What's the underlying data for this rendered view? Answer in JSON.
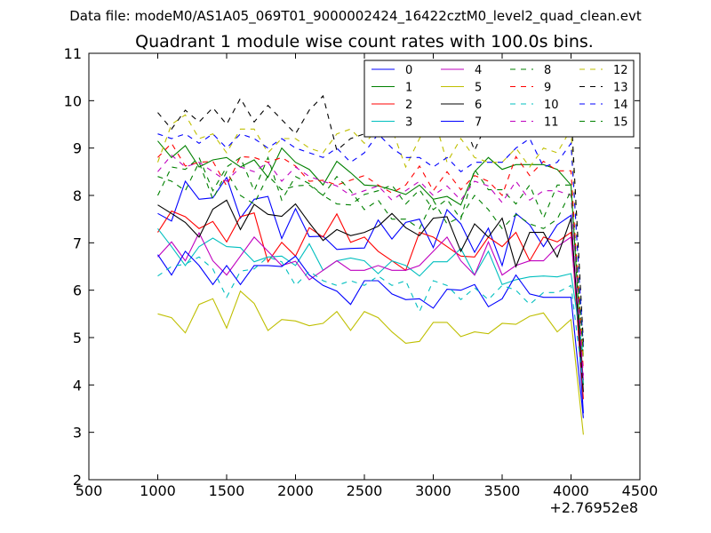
{
  "suptitle": "Data file: modeM0/AS1A05_069T01_9000002424_16422cztM0_level2_quad_clean.evt",
  "chart_data": {
    "type": "line",
    "title": "Quadrant 1 module wise count rates with 100.0s bins.",
    "xlabel": "",
    "ylabel": "",
    "x_offset_label": "+2.76952e8",
    "xlim": [
      500,
      4500
    ],
    "ylim": [
      2,
      11
    ],
    "xticks": [
      "500",
      "1000",
      "1500",
      "2000",
      "2500",
      "3000",
      "3500",
      "4000",
      "4500"
    ],
    "yticks": [
      "2",
      "3",
      "4",
      "5",
      "6",
      "7",
      "8",
      "9",
      "10",
      "11"
    ],
    "grid": false,
    "legend_position": "top-right",
    "x": [
      1000,
      1100,
      1200,
      1300,
      1400,
      1500,
      1600,
      1700,
      1800,
      1900,
      2000,
      2100,
      2200,
      2300,
      2400,
      2500,
      2600,
      2700,
      2800,
      2900,
      3000,
      3100,
      3200,
      3300,
      3400,
      3500,
      3600,
      3700,
      3800,
      3900,
      4000,
      4090
    ],
    "series": [
      {
        "name": "0",
        "color": "#0000ff",
        "dash": "solid",
        "values": [
          7.62,
          7.46,
          8.3,
          7.92,
          7.95,
          8.38,
          7.52,
          7.92,
          7.98,
          7.09,
          7.72,
          7.13,
          7.14,
          6.86,
          6.88,
          6.89,
          7.48,
          7.08,
          7.43,
          7.5,
          6.9,
          7.7,
          7.4,
          6.8,
          7.31,
          6.52,
          7.62,
          7.38,
          6.92,
          7.38,
          7.58,
          3.4
        ]
      },
      {
        "name": "1",
        "color": "#008000",
        "dash": "solid",
        "values": [
          9.15,
          8.8,
          9.05,
          8.6,
          8.75,
          8.8,
          8.6,
          8.75,
          8.38,
          9.0,
          8.7,
          8.55,
          8.22,
          8.72,
          8.48,
          8.22,
          8.2,
          8.12,
          8.02,
          8.22,
          7.92,
          7.98,
          7.8,
          8.5,
          8.8,
          8.55,
          8.65,
          8.65,
          8.65,
          8.55,
          8.22,
          4.0
        ]
      },
      {
        "name": "2",
        "color": "#ff0000",
        "dash": "solid",
        "values": [
          7.22,
          7.67,
          7.55,
          7.3,
          7.45,
          7.02,
          7.55,
          7.63,
          6.6,
          7.01,
          6.72,
          7.32,
          7.12,
          7.61,
          7.01,
          7.12,
          6.82,
          6.62,
          6.42,
          7.22,
          7.12,
          6.92,
          6.72,
          6.7,
          7.12,
          6.92,
          7.22,
          6.62,
          7.12,
          7.02,
          7.22,
          3.7
        ]
      },
      {
        "name": "3",
        "color": "#00bfbf",
        "dash": "solid",
        "values": [
          7.3,
          6.92,
          6.52,
          6.92,
          7.1,
          6.92,
          6.9,
          6.6,
          6.7,
          6.72,
          6.52,
          6.98,
          6.42,
          6.62,
          6.68,
          6.62,
          6.35,
          6.62,
          6.52,
          6.3,
          6.6,
          6.6,
          6.88,
          6.32,
          6.82,
          6.12,
          6.22,
          6.28,
          6.3,
          6.28,
          6.35,
          4.6
        ]
      },
      {
        "name": "4",
        "color": "#bf00bf",
        "dash": "solid",
        "values": [
          6.7,
          7.02,
          6.62,
          7.21,
          6.62,
          6.32,
          6.72,
          7.12,
          6.82,
          6.52,
          6.61,
          6.22,
          6.42,
          6.62,
          6.42,
          6.42,
          6.52,
          6.42,
          6.42,
          6.52,
          6.82,
          7.12,
          6.62,
          6.32,
          7.02,
          6.32,
          6.52,
          6.62,
          6.62,
          6.92,
          7.12,
          4.1
        ]
      },
      {
        "name": "5",
        "color": "#bfbf00",
        "dash": "solid",
        "values": [
          5.5,
          5.42,
          5.1,
          5.7,
          5.82,
          5.2,
          5.98,
          5.72,
          5.15,
          5.38,
          5.35,
          5.25,
          5.3,
          5.55,
          5.15,
          5.55,
          5.42,
          5.12,
          4.88,
          4.92,
          5.32,
          5.32,
          5.02,
          5.12,
          5.08,
          5.3,
          5.28,
          5.45,
          5.52,
          5.12,
          5.38,
          2.95
        ]
      },
      {
        "name": "6",
        "color": "#000000",
        "dash": "solid",
        "values": [
          7.8,
          7.62,
          7.43,
          7.12,
          7.71,
          7.9,
          7.28,
          7.81,
          7.6,
          7.56,
          7.82,
          7.42,
          7.05,
          7.28,
          7.15,
          7.22,
          7.35,
          7.62,
          7.32,
          7.15,
          7.52,
          7.55,
          6.82,
          7.4,
          7.12,
          7.52,
          6.5,
          7.22,
          7.22,
          6.7,
          7.52,
          3.85
        ]
      },
      {
        "name": "7",
        "color": "#0000ff",
        "dash": "solid",
        "values": [
          6.75,
          6.32,
          6.82,
          6.52,
          6.12,
          6.52,
          6.12,
          6.52,
          6.52,
          6.5,
          6.72,
          6.32,
          6.1,
          5.98,
          5.7,
          6.2,
          6.2,
          5.92,
          5.8,
          5.82,
          5.62,
          6.02,
          6.0,
          6.12,
          5.65,
          5.82,
          6.32,
          5.92,
          5.85,
          5.85,
          5.85,
          3.3
        ]
      },
      {
        "name": "8",
        "color": "#008000",
        "dash": "dashed",
        "values": [
          8.4,
          8.3,
          8.1,
          8.7,
          7.92,
          8.5,
          8.0,
          7.82,
          8.42,
          8.12,
          8.2,
          8.22,
          8.0,
          7.82,
          7.8,
          8.02,
          8.1,
          8.22,
          7.82,
          8.12,
          7.7,
          7.92,
          7.5,
          8.55,
          8.12,
          8.12,
          7.82,
          8.22,
          7.52,
          8.22,
          8.22,
          4.6
        ]
      },
      {
        "name": "9",
        "color": "#ff0000",
        "dash": "dashed",
        "values": [
          8.8,
          9.1,
          8.62,
          8.7,
          8.72,
          8.2,
          8.82,
          8.8,
          8.7,
          8.8,
          8.62,
          8.3,
          8.32,
          8.22,
          8.32,
          8.42,
          8.22,
          8.05,
          8.22,
          8.62,
          8.1,
          8.5,
          8.12,
          8.42,
          8.3,
          8.0,
          8.82,
          8.42,
          8.72,
          8.52,
          8.52,
          4.3
        ]
      },
      {
        "name": "10",
        "color": "#00bfbf",
        "dash": "dashed",
        "values": [
          6.3,
          6.5,
          6.55,
          6.7,
          6.45,
          5.85,
          6.4,
          6.45,
          6.7,
          6.6,
          6.1,
          6.4,
          6.2,
          6.1,
          6.2,
          6.1,
          6.3,
          6.1,
          6.2,
          5.55,
          6.2,
          6.1,
          5.8,
          6.05,
          5.8,
          6.1,
          6.0,
          5.7,
          5.95,
          5.95,
          6.1,
          4.0
        ]
      },
      {
        "name": "11",
        "color": "#bf00bf",
        "dash": "dashed",
        "values": [
          8.5,
          8.85,
          8.6,
          8.7,
          8.5,
          8.3,
          8.6,
          8.5,
          8.7,
          8.3,
          8.6,
          8.4,
          8.3,
          8.2,
          8.0,
          8.1,
          8.2,
          7.9,
          8.1,
          8.3,
          8.0,
          8.2,
          7.9,
          8.3,
          8.2,
          7.85,
          8.3,
          7.9,
          8.1,
          8.1,
          8.0,
          4.2
        ]
      },
      {
        "name": "12",
        "color": "#bfbf00",
        "dash": "dashed",
        "values": [
          8.7,
          9.5,
          9.7,
          9.2,
          9.3,
          8.9,
          9.4,
          9.4,
          8.9,
          9.2,
          9.2,
          9.0,
          8.9,
          9.3,
          9.4,
          9.1,
          9.4,
          9.4,
          8.6,
          9.2,
          9.7,
          8.7,
          9.2,
          8.8,
          8.7,
          8.7,
          9.0,
          8.6,
          9.0,
          8.9,
          9.4,
          4.5
        ]
      },
      {
        "name": "13",
        "color": "#000000",
        "dash": "dashed",
        "values": [
          9.75,
          9.4,
          9.8,
          9.55,
          9.85,
          9.5,
          10.05,
          9.55,
          9.9,
          9.6,
          9.3,
          9.8,
          10.1,
          8.95,
          9.2,
          9.3,
          9.5,
          10.08,
          9.4,
          9.8,
          9.5,
          9.7,
          9.7,
          8.95,
          9.6,
          9.3,
          9.4,
          9.5,
          9.7,
          9.5,
          9.8,
          4.9
        ]
      },
      {
        "name": "14",
        "color": "#0000ff",
        "dash": "dashed",
        "values": [
          9.3,
          9.2,
          9.3,
          9.1,
          9.3,
          9.0,
          9.3,
          9.2,
          9.0,
          9.2,
          9.0,
          8.9,
          8.8,
          9.0,
          8.7,
          8.9,
          9.3,
          9.0,
          8.8,
          8.8,
          8.6,
          8.8,
          8.5,
          8.7,
          8.7,
          8.7,
          9.0,
          9.2,
          8.6,
          8.7,
          9.1,
          4.8
        ]
      },
      {
        "name": "15",
        "color": "#008000",
        "dash": "dashed",
        "values": [
          8.0,
          8.6,
          8.55,
          8.8,
          8.1,
          8.6,
          8.8,
          8.1,
          8.8,
          7.9,
          8.4,
          8.25,
          8.0,
          8.4,
          8.1,
          7.7,
          7.9,
          7.5,
          7.5,
          7.3,
          7.9,
          7.4,
          7.55,
          8.0,
          7.7,
          7.3,
          7.6,
          7.4,
          7.3,
          7.5,
          8.1,
          4.7
        ]
      }
    ]
  }
}
